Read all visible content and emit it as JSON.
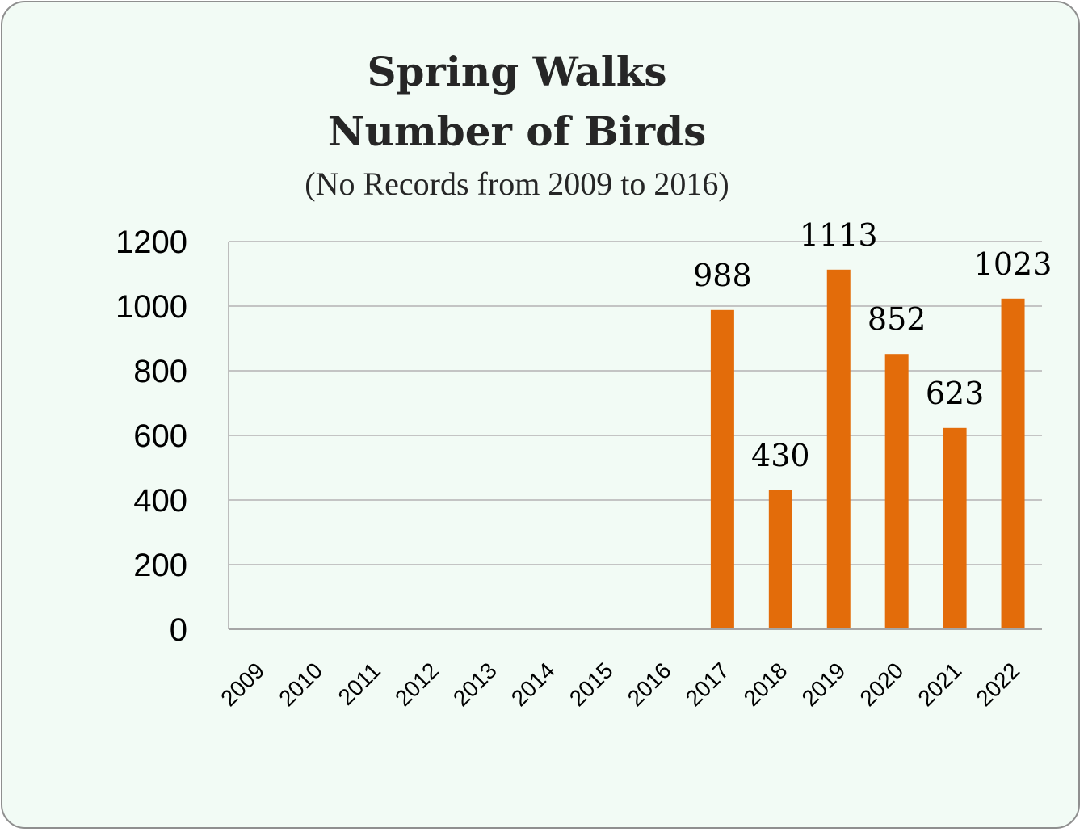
{
  "chart_data": {
    "type": "bar",
    "title_lines": [
      "Spring Walks",
      "Number of Birds"
    ],
    "subtitle": "(No Records from 2009 to 2016)",
    "categories": [
      "2009",
      "2010",
      "2011",
      "2012",
      "2013",
      "2014",
      "2015",
      "2016",
      "2017",
      "2018",
      "2019",
      "2020",
      "2021",
      "2022"
    ],
    "values": [
      0,
      0,
      0,
      0,
      0,
      0,
      0,
      0,
      988,
      430,
      1113,
      852,
      623,
      1023
    ],
    "data_labels": [
      "",
      "",
      "",
      "",
      "",
      "",
      "",
      "",
      "988",
      "430",
      "1113",
      "852",
      "623",
      "1023"
    ],
    "ylim": [
      0,
      1200
    ],
    "yticks": [
      0,
      200,
      400,
      600,
      800,
      1000,
      1200
    ],
    "grid": true,
    "bar_color": "#e36c0a"
  }
}
